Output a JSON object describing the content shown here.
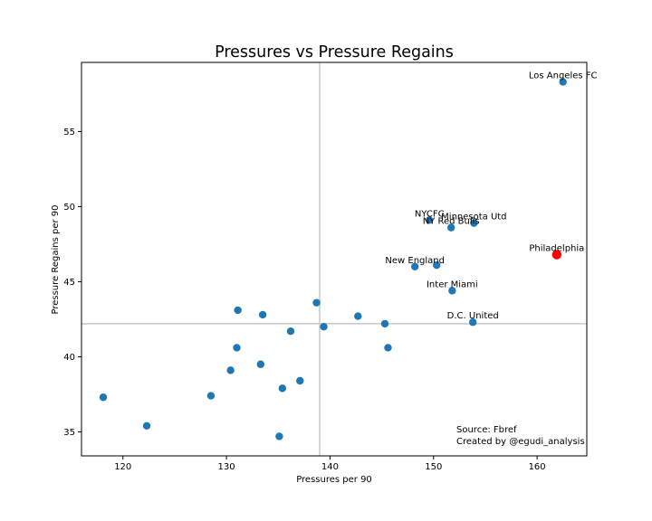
{
  "chart_data": {
    "type": "scatter",
    "title": "Pressures vs Pressure Regains",
    "xlabel": "Pressures per 90",
    "ylabel": "Pressure Regains per 90",
    "xlim": [
      116,
      164.8
    ],
    "ylim": [
      33.4,
      59.6
    ],
    "xticks": [
      120,
      130,
      140,
      150,
      160
    ],
    "yticks": [
      35,
      40,
      45,
      50,
      55
    ],
    "grid": false,
    "ref_lines": {
      "x": 139,
      "y": 42.2
    },
    "colors": {
      "default": "#1f77b4",
      "highlight": "#ff0000",
      "ref_line": "#c8c8c8"
    },
    "points": [
      {
        "x": 162.5,
        "y": 58.3,
        "label": "Los Angeles FC"
      },
      {
        "x": 161.9,
        "y": 46.8,
        "label": "Philadelphia",
        "highlight": true
      },
      {
        "x": 149.6,
        "y": 49.1,
        "label": "NYCFC"
      },
      {
        "x": 153.9,
        "y": 48.9,
        "label": "Minnesota Utd"
      },
      {
        "x": 151.7,
        "y": 48.6,
        "label": "NY Red Bulls"
      },
      {
        "x": 150.3,
        "y": 46.1
      },
      {
        "x": 148.2,
        "y": 46.0,
        "label": "New England"
      },
      {
        "x": 151.8,
        "y": 44.4,
        "label": "Inter Miami"
      },
      {
        "x": 153.8,
        "y": 42.3,
        "label": "D.C. United"
      },
      {
        "x": 145.3,
        "y": 42.2
      },
      {
        "x": 145.6,
        "y": 40.6
      },
      {
        "x": 142.7,
        "y": 42.7
      },
      {
        "x": 138.7,
        "y": 43.6
      },
      {
        "x": 139.4,
        "y": 42.0
      },
      {
        "x": 136.2,
        "y": 41.7
      },
      {
        "x": 133.5,
        "y": 42.8
      },
      {
        "x": 131.1,
        "y": 43.1
      },
      {
        "x": 131.0,
        "y": 40.6
      },
      {
        "x": 133.3,
        "y": 39.5
      },
      {
        "x": 130.4,
        "y": 39.1
      },
      {
        "x": 137.1,
        "y": 38.4
      },
      {
        "x": 135.4,
        "y": 37.9
      },
      {
        "x": 128.5,
        "y": 37.4
      },
      {
        "x": 118.1,
        "y": 37.3
      },
      {
        "x": 122.3,
        "y": 35.4
      },
      {
        "x": 135.1,
        "y": 34.7
      }
    ],
    "annotations": [
      "Source: Fbref",
      "Created by @egudi_analysis"
    ]
  }
}
